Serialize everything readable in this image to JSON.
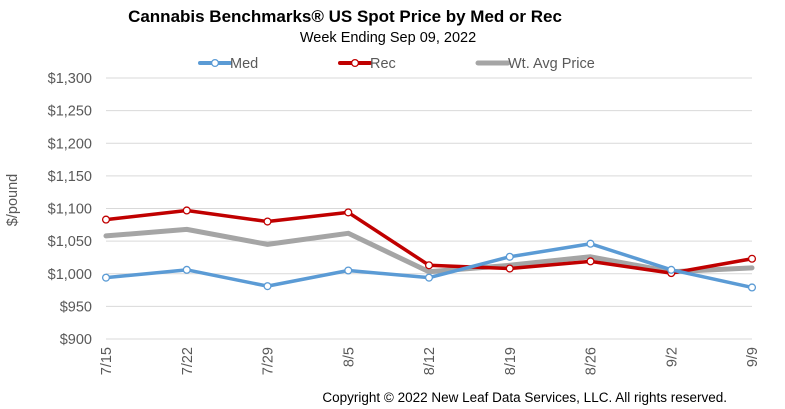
{
  "chart_data": {
    "type": "line",
    "title": "Cannabis Benchmarks® US Spot Price by Med or Rec",
    "subtitle": "Week Ending Sep 09, 2022",
    "ylabel": "$/pound",
    "xlabel": "",
    "categories": [
      "7/15",
      "7/22",
      "7/29",
      "8/5",
      "8/12",
      "8/19",
      "8/26",
      "9/2",
      "9/9"
    ],
    "ylim": [
      900,
      1300
    ],
    "yticks": [
      900,
      950,
      1000,
      1050,
      1100,
      1150,
      1200,
      1250,
      1300
    ],
    "ytick_labels": [
      "$900",
      "$950",
      "$1,000",
      "$1,050",
      "$1,100",
      "$1,150",
      "$1,200",
      "$1,250",
      "$1,300"
    ],
    "grid": "horizontal",
    "legend_position": "top",
    "series": [
      {
        "name": "Med",
        "color": "#5B9BD5",
        "markers": true,
        "values": [
          994,
          1006,
          981,
          1005,
          994,
          1026,
          1046,
          1006,
          979
        ]
      },
      {
        "name": "Rec",
        "color": "#C00000",
        "markers": true,
        "values": [
          1083,
          1097,
          1080,
          1094,
          1013,
          1008,
          1019,
          1001,
          1023
        ]
      },
      {
        "name": "Wt. Avg Price",
        "color": "#A5A5A5",
        "markers": false,
        "values": [
          1058,
          1068,
          1045,
          1062,
          1003,
          1013,
          1026,
          1003,
          1009
        ]
      }
    ]
  },
  "footer": {
    "copyright": "Copyright © 2022 New Leaf Data Services, LLC. All rights reserved."
  }
}
